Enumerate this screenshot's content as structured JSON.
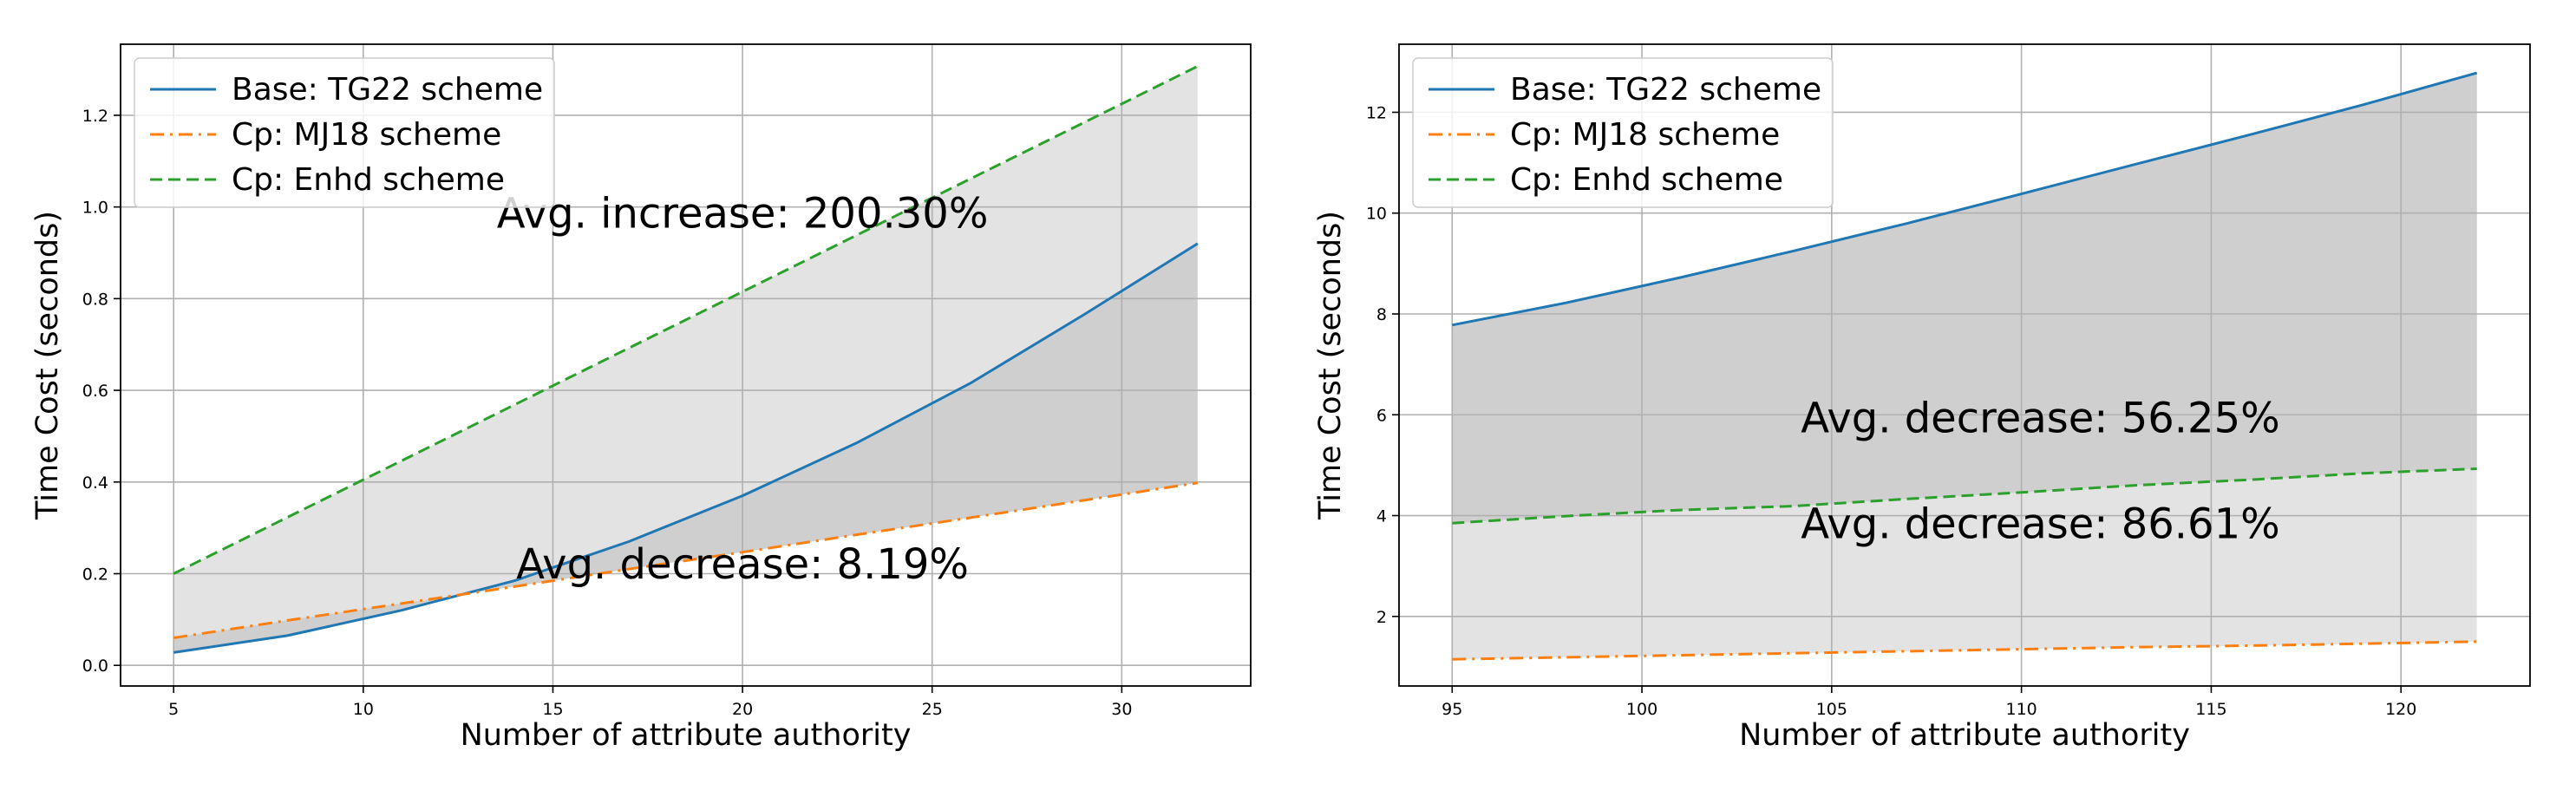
{
  "chart_data": [
    {
      "type": "line",
      "xlabel": "Number of attribute authority",
      "ylabel": "Time Cost (seconds)",
      "xlim": [
        3.6,
        33.4
      ],
      "ylim": [
        -0.045,
        1.355
      ],
      "xticks": [
        5,
        10,
        15,
        20,
        25,
        30
      ],
      "yticks": [
        0.0,
        0.2,
        0.4,
        0.6,
        0.8,
        1.0,
        1.2
      ],
      "tick_decimals": 1,
      "grid": true,
      "legend_position": "top-left",
      "x": [
        5,
        8,
        11,
        14,
        17,
        20,
        23,
        26,
        29,
        32
      ],
      "series": [
        {
          "name": "Base: TG22 scheme",
          "style": "solid",
          "color": "#1f77b4",
          "values": [
            0.028,
            0.065,
            0.12,
            0.185,
            0.27,
            0.37,
            0.485,
            0.615,
            0.765,
            0.92
          ]
        },
        {
          "name": "Cp: MJ18 scheme",
          "style": "dashdot",
          "color": "#ff7f0e",
          "values": [
            0.06,
            0.098,
            0.135,
            0.172,
            0.21,
            0.247,
            0.285,
            0.322,
            0.36,
            0.398
          ]
        },
        {
          "name": "Cp: Enhd scheme",
          "style": "dashed",
          "color": "#2ca02c",
          "values": [
            0.2,
            0.323,
            0.446,
            0.569,
            0.692,
            0.815,
            0.938,
            1.061,
            1.184,
            1.307
          ]
        }
      ],
      "fills": [
        {
          "between": [
            0,
            2
          ],
          "color": "#e3e3e3"
        },
        {
          "between": [
            0,
            1
          ],
          "color": "#cfcfcf"
        }
      ],
      "annotations": [
        {
          "text": "Avg. increase: 200.30%",
          "x": 20,
          "y": 0.955
        },
        {
          "text": "Avg. decrease: 8.19%",
          "x": 20,
          "y": 0.19
        }
      ]
    },
    {
      "type": "line",
      "xlabel": "Number of attribute authority",
      "ylabel": "Time Cost (seconds)",
      "xlim": [
        93.6,
        123.4
      ],
      "ylim": [
        0.62,
        13.35
      ],
      "xticks": [
        95,
        100,
        105,
        110,
        115,
        120
      ],
      "yticks": [
        2,
        4,
        6,
        8,
        10,
        12
      ],
      "tick_decimals": 0,
      "grid": true,
      "legend_position": "top-left",
      "x": [
        95,
        98,
        101,
        104,
        107,
        110,
        113,
        116,
        119,
        122
      ],
      "series": [
        {
          "name": "Base: TG22 scheme",
          "style": "solid",
          "color": "#1f77b4",
          "values": [
            7.78,
            8.22,
            8.72,
            9.25,
            9.8,
            10.38,
            10.97,
            11.55,
            12.15,
            12.78
          ]
        },
        {
          "name": "Cp: MJ18 scheme",
          "style": "dashdot",
          "color": "#ff7f0e",
          "values": [
            1.15,
            1.19,
            1.23,
            1.27,
            1.31,
            1.35,
            1.39,
            1.42,
            1.46,
            1.5
          ]
        },
        {
          "name": "Cp: Enhd scheme",
          "style": "dashed",
          "color": "#2ca02c",
          "values": [
            3.85,
            3.99,
            4.11,
            4.19,
            4.33,
            4.46,
            4.6,
            4.71,
            4.84,
            4.93
          ]
        }
      ],
      "fills": [
        {
          "between": [
            0,
            1
          ],
          "color": "#e3e3e3"
        },
        {
          "between": [
            0,
            2
          ],
          "color": "#cfcfcf"
        }
      ],
      "annotations": [
        {
          "text": "Avg. decrease: 56.25%",
          "x": 110.5,
          "y": 5.65
        },
        {
          "text": "Avg. decrease: 86.61%",
          "x": 110.5,
          "y": 3.55
        }
      ]
    }
  ]
}
